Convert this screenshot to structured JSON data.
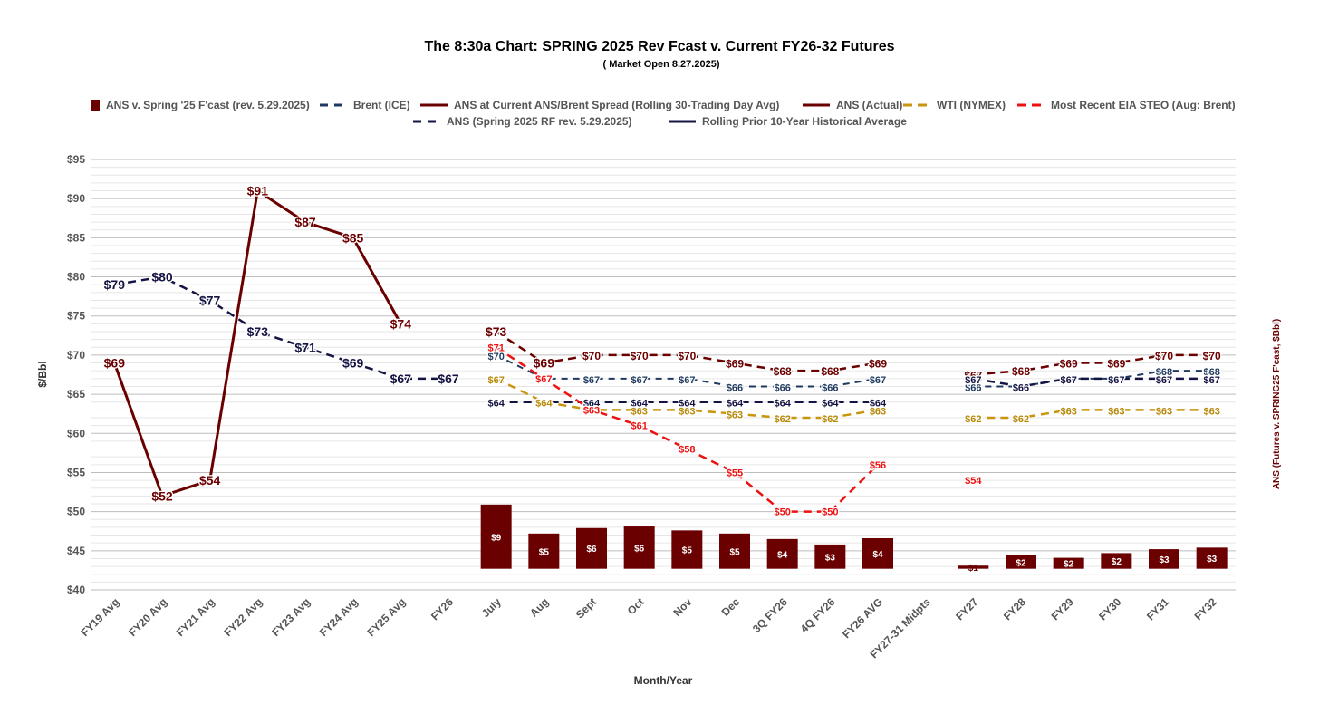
{
  "chart_data": {
    "type": "line",
    "title": "The 8:30a Chart: SPRING 2025 Rev Fcast v. Current FY26-32 Futures",
    "subtitle": "( Market Open 8.27.2025)",
    "xlabel": "Month/Year",
    "ylabel": "$/Bbl",
    "y2label": "ANS (Futures v. SPRING25 F'cast, $Bbl)",
    "ylim": [
      40,
      95
    ],
    "ytick_step": 5,
    "categories": [
      "FY19 Avg",
      "FY20 Avg",
      "FY21 Avg",
      "FY22 Avg",
      "FY23 Avg",
      "FY24 Avg",
      "FY25 Avg",
      "FY26",
      "July",
      "Aug",
      "Sept",
      "Oct",
      "Nov",
      "Dec",
      "3Q FY26",
      "4Q FY26",
      "FY26 AVG",
      "FY27-31 Midpts",
      "FY27",
      "FY28",
      "FY29",
      "FY30",
      "FY31",
      "FY32"
    ],
    "legend": [
      "ANS v. Spring '25 F'cast (rev. 5.29.2025)",
      "Brent (ICE)",
      "ANS at Current ANS/Brent Spread (Rolling 30-Trading Day Avg)",
      "ANS (Actual)",
      "WTI (NYMEX)",
      "Most Recent EIA STEO (Aug: Brent)",
      "ANS (Spring 2025 RF rev. 5.29.2025)",
      "Rolling Prior 10-Year Historical Average"
    ],
    "bars": {
      "name": "ANS v. Spring '25 F'cast (rev. 5.29.2025)",
      "color": "#6b0000",
      "baseline": 42.7,
      "display_values": [
        null,
        null,
        null,
        null,
        null,
        null,
        null,
        null,
        9,
        5,
        6,
        6,
        5,
        5,
        4,
        3,
        4,
        null,
        1,
        2,
        2,
        2,
        3,
        3
      ],
      "tops": [
        null,
        null,
        null,
        null,
        null,
        null,
        null,
        null,
        50.9,
        47.2,
        47.9,
        48.1,
        47.6,
        47.2,
        46.5,
        45.8,
        46.6,
        null,
        43.1,
        44.4,
        44.1,
        44.7,
        45.2,
        45.4
      ],
      "labels": [
        "",
        "",
        "",
        "",
        "",
        "",
        "",
        "",
        "$9",
        "$5",
        "$6",
        "$6",
        "$5",
        "$5",
        "$4",
        "$3",
        "$4",
        "",
        "$1",
        "$2",
        "$2",
        "$2",
        "$3",
        "$3"
      ]
    },
    "series": [
      {
        "name": "ANS (Actual)",
        "color": "#6b0000",
        "style": "solid",
        "values": [
          69,
          52,
          54,
          91,
          87,
          85,
          74,
          null,
          null,
          null,
          null,
          null,
          null,
          null,
          null,
          null,
          null,
          null,
          null,
          null,
          null,
          null,
          null,
          null
        ],
        "labels": [
          "$69",
          "$52",
          "$54",
          "$91",
          "$87",
          "$85",
          "$74",
          "",
          "",
          "",
          "",
          "",
          "",
          "",
          "",
          "",
          "",
          "",
          "",
          "",
          "",
          "",
          "",
          ""
        ]
      },
      {
        "name": "Rolling Prior 10-Year Historical Average",
        "color": "#141444",
        "style": "dash-long",
        "values": [
          79,
          80,
          77,
          73,
          71,
          69,
          67,
          67,
          null,
          null,
          null,
          null,
          null,
          null,
          null,
          null,
          null,
          null,
          null,
          null,
          null,
          null,
          null,
          null
        ],
        "labels": [
          "$79",
          "$80",
          "$77",
          "$73",
          "$71",
          "$69",
          "$67",
          "$67",
          "",
          "",
          "",
          "",
          "",
          "",
          "",
          "",
          "",
          "",
          "",
          "",
          "",
          "",
          "",
          ""
        ]
      },
      {
        "name": "ANS at Current ANS/Brent Spread (Rolling 30-Trading Day Avg)",
        "color": "#6b0000",
        "style": "dash-long",
        "values": [
          null,
          null,
          null,
          null,
          null,
          null,
          null,
          null,
          73,
          69,
          70,
          70,
          70,
          69,
          68,
          68,
          69,
          null,
          67.5,
          68,
          69,
          69,
          70,
          70
        ],
        "labels": [
          "",
          "",
          "",
          "",
          "",
          "",
          "",
          "",
          "$73",
          "$69",
          "$70",
          "$70",
          "$70",
          "$69",
          "$68",
          "$68",
          "$69",
          "",
          "$67",
          "$68",
          "$69",
          "$69",
          "$70",
          "$70"
        ]
      },
      {
        "name": "Brent (ICE)",
        "color": "#1f3a5f",
        "style": "dash-short",
        "values": [
          null,
          null,
          null,
          null,
          null,
          null,
          null,
          null,
          70,
          67,
          67,
          67,
          67,
          66,
          66,
          66,
          67,
          null,
          66,
          66,
          67,
          67,
          68,
          68
        ],
        "labels": [
          "",
          "",
          "",
          "",
          "",
          "",
          "",
          "",
          "$70",
          "$67",
          "$67",
          "$67",
          "$67",
          "$66",
          "$66",
          "$66",
          "$67",
          "",
          "$66",
          "$66",
          "$67",
          "$67",
          "$68",
          "$68"
        ]
      },
      {
        "name": "ANS (Spring 2025 RF rev. 5.29.2025)",
        "color": "#141444",
        "style": "dash-long",
        "values": [
          null,
          null,
          null,
          null,
          null,
          null,
          null,
          null,
          64,
          64,
          64,
          64,
          64,
          64,
          64,
          64,
          64,
          null,
          67,
          66,
          67,
          67,
          67,
          67
        ],
        "labels": [
          "",
          "",
          "",
          "",
          "",
          "",
          "",
          "",
          "$64",
          "$64",
          "$64",
          "$64",
          "$64",
          "$64",
          "$64",
          "$64",
          "$64",
          "",
          "$67",
          "$66",
          "$67",
          "$67",
          "$67",
          "$67"
        ]
      },
      {
        "name": "WTI (NYMEX)",
        "color": "#c8960c",
        "style": "dash-long",
        "values": [
          null,
          null,
          null,
          null,
          null,
          null,
          null,
          null,
          67,
          64,
          63,
          63,
          63,
          62.5,
          62,
          62,
          63,
          null,
          62,
          62,
          63,
          63,
          63,
          63
        ],
        "labels": [
          "",
          "",
          "",
          "",
          "",
          "",
          "",
          "",
          "$67",
          "$64",
          "$63",
          "$63",
          "$63",
          "$63",
          "$62",
          "$62",
          "$63",
          "",
          "$62",
          "$62",
          "$63",
          "$63",
          "$63",
          "$63"
        ]
      },
      {
        "name": "Most Recent EIA STEO (Aug: Brent)",
        "color": "#ee1111",
        "style": "dash-long",
        "values": [
          null,
          null,
          null,
          null,
          null,
          null,
          null,
          null,
          71,
          67,
          63,
          61,
          58,
          55,
          50,
          50,
          56,
          null,
          54,
          null,
          null,
          null,
          null,
          null
        ],
        "labels": [
          "",
          "",
          "",
          "",
          "",
          "",
          "",
          "",
          "$71",
          "$67",
          "$63",
          "$61",
          "$58",
          "$55",
          "$50",
          "$50",
          "$56",
          "",
          "$54",
          "",
          "",
          "",
          "",
          ""
        ]
      }
    ]
  }
}
